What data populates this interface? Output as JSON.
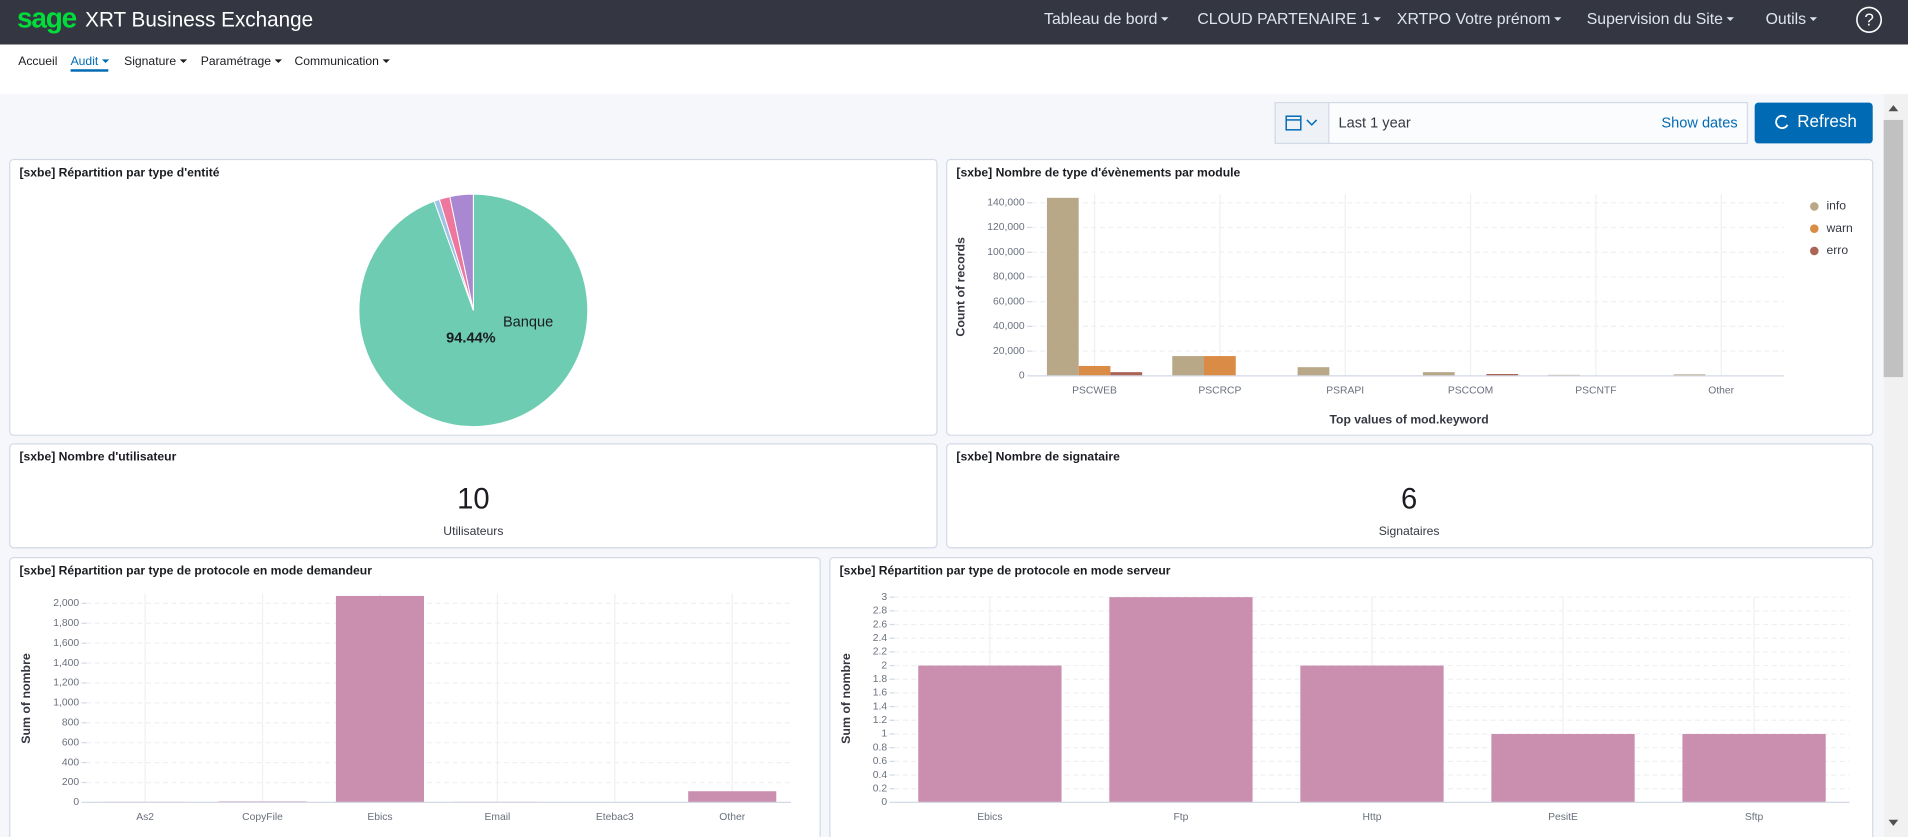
{
  "header": {
    "logo": "sage",
    "title": "XRT Business Exchange",
    "menu": [
      "Tableau de bord",
      "CLOUD PARTENAIRE 1",
      "XRTPO Votre prénom",
      "Supervision du Site",
      "Outils"
    ],
    "help": "?"
  },
  "subnav": [
    "Accueil",
    "Audit",
    "Signature",
    "Paramétrage",
    "Communication"
  ],
  "toolbar": {
    "range": "Last 1 year",
    "show_dates": "Show dates",
    "refresh": "Refresh"
  },
  "metrics": [
    {
      "title": "[sxbe] Nombre d'utilisateur",
      "value": 10,
      "label": "Utilisateurs"
    },
    {
      "title": "[sxbe] Nombre de signataire",
      "value": 6,
      "label": "Signataires"
    }
  ],
  "chart_data": [
    {
      "type": "pie",
      "title": "[sxbe] Répartition par type d'entité",
      "categories": [
        "Banque",
        null,
        null,
        null
      ],
      "values": [
        94.44,
        0.76,
        1.5,
        3.3
      ],
      "value_labels": [
        "94.44%",
        null,
        null,
        null
      ],
      "colors": [
        "#6dccb1",
        "#9ec3e6",
        "#ee789d",
        "#a987d1"
      ]
    },
    {
      "type": "bar",
      "title": "[sxbe] Nombre de type d'évènements par module",
      "x_label": "Top values of mod.keyword",
      "y_label": "Count of records",
      "categories": [
        "PSCWEB",
        "PSCRCP",
        "PSRAPI",
        "PSCCOM",
        "PSCNTF",
        "Other"
      ],
      "series": [
        {
          "name": "info",
          "color": "#b9a888",
          "values": [
            144000,
            16000,
            7000,
            3000,
            800,
            1200
          ]
        },
        {
          "name": "warn",
          "color": "#da8b45",
          "values": [
            8000,
            16000,
            300,
            200,
            100,
            100
          ]
        },
        {
          "name": "erro",
          "color": "#aa6556",
          "values": [
            3000,
            200,
            100,
            1500,
            200,
            100
          ]
        }
      ],
      "ylim": [
        0,
        147000
      ],
      "yticks": [
        0,
        {
          "value": 20000,
          "label": "20,000"
        },
        {
          "value": 40000,
          "label": "40,000"
        },
        {
          "value": 60000,
          "label": "60,000"
        },
        {
          "value": 80000,
          "label": "80,000"
        },
        {
          "value": 100000,
          "label": "100,000"
        },
        {
          "value": 120000,
          "label": "120,000"
        },
        {
          "value": 140000,
          "label": "140,000"
        }
      ],
      "grid": true,
      "legend": "right"
    },
    {
      "type": "bar",
      "title": "[sxbe] Répartition par type de protocole en mode demandeur",
      "y_label": "Sum of nombre",
      "categories": [
        "As2",
        "CopyFile",
        "Ebics",
        "Email",
        "Etebac3",
        "Other"
      ],
      "values": [
        5,
        10,
        2075,
        5,
        3,
        112
      ],
      "color": "#ca8eae",
      "ylim": [
        0,
        2100
      ],
      "yticks": [
        0,
        200,
        400,
        600,
        800,
        {
          "value": 1000,
          "label": "1,000"
        },
        {
          "value": 1200,
          "label": "1,200"
        },
        {
          "value": 1400,
          "label": "1,400"
        },
        {
          "value": 1600,
          "label": "1,600"
        },
        {
          "value": 1800,
          "label": "1,800"
        },
        {
          "value": 2000,
          "label": "2,000"
        }
      ],
      "grid": true
    },
    {
      "type": "bar",
      "title": "[sxbe] Répartition par type de protocole en mode serveur",
      "y_label": "Sum of nombre",
      "categories": [
        "Ebics",
        "Ftp",
        "Http",
        "PesitE",
        "Sftp"
      ],
      "values": [
        2,
        3,
        2,
        1,
        1
      ],
      "color": "#ca8eae",
      "ylim": [
        0,
        3
      ],
      "yticks": [
        0,
        0.2,
        0.4,
        0.6,
        0.8,
        1,
        1.2,
        1.4,
        1.6,
        1.8,
        2,
        2.2,
        2.4,
        2.6,
        2.8,
        3
      ],
      "grid": true
    }
  ]
}
